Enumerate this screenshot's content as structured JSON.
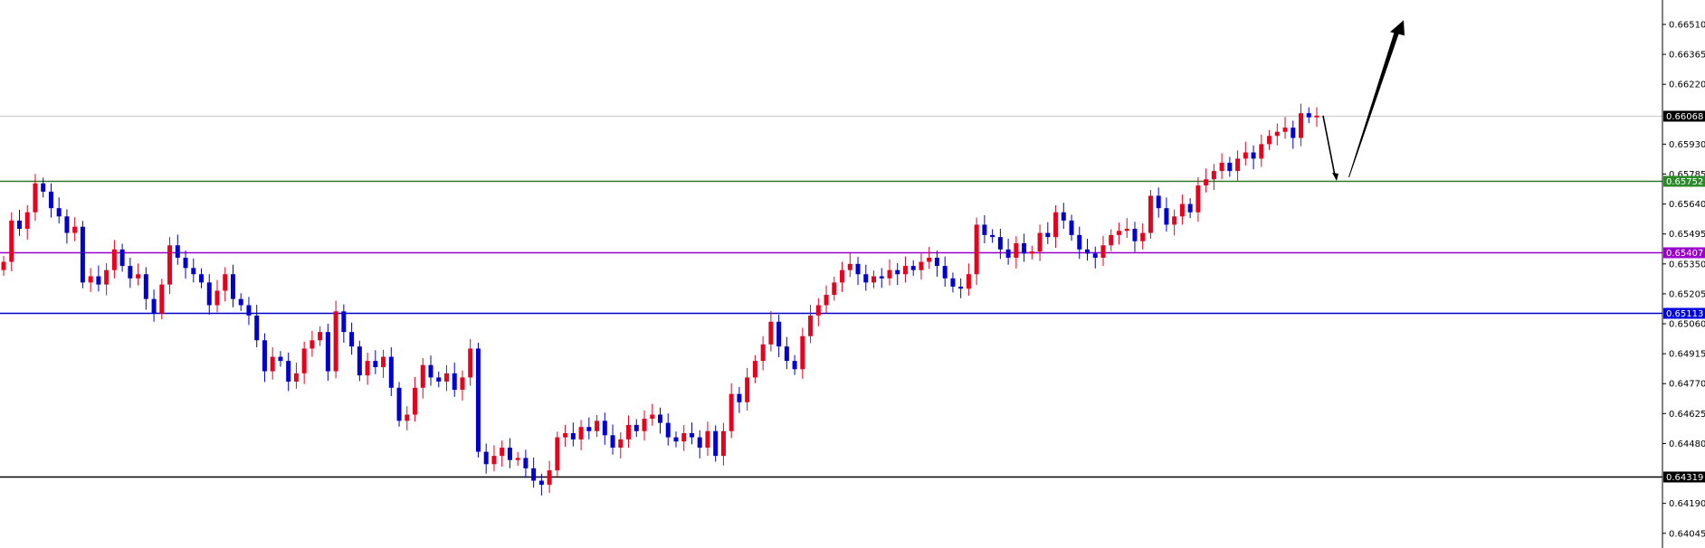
{
  "chart_data": {
    "type": "candlestick",
    "title": "",
    "xlabel": "",
    "ylabel": "",
    "ylim": [
      0.64,
      0.6665
    ],
    "grid": false,
    "colors": {
      "bullish": "#e8001c",
      "bearish": "#0000d0",
      "axis": "#000000"
    },
    "y_ticks": [
      "0.66510",
      "0.66365",
      "0.66220",
      "0.65930",
      "0.65785",
      "0.65640",
      "0.65495",
      "0.65350",
      "0.65205",
      "0.65060",
      "0.64915",
      "0.64770",
      "0.64625",
      "0.64480",
      "0.64190",
      "0.64045"
    ],
    "horizontal_lines": [
      {
        "price": 0.66068,
        "label": "0.66068",
        "color": "#c8c8c8",
        "tag_color": "#000000",
        "tag_text_color": "#ffffff"
      },
      {
        "price": 0.65752,
        "label": "0.65752",
        "color": "#2a7a2a",
        "tag_color": "#2a8a2a",
        "tag_text_color": "#ffffff"
      },
      {
        "price": 0.65407,
        "label": "0.65407",
        "color": "#9a00cc",
        "tag_color": "#9a00cc",
        "tag_text_color": "#ffffff"
      },
      {
        "price": 0.65113,
        "label": "0.65113",
        "color": "#0000c8",
        "tag_color": "#0000e0",
        "tag_text_color": "#ffffff"
      },
      {
        "price": 0.64319,
        "label": "0.64319",
        "color": "#000000",
        "tag_color": "#000000",
        "tag_text_color": "#ffffff"
      }
    ],
    "annotations": [
      {
        "type": "arrow",
        "direction": "down",
        "from_price": 0.66068,
        "to_price": 0.65752,
        "color": "#000000"
      },
      {
        "type": "arrow",
        "direction": "up",
        "from_price": 0.65752,
        "to_price": 0.6653,
        "color": "#000000"
      }
    ],
    "closes": [
      0.6536,
      0.6556,
      0.6552,
      0.656,
      0.6574,
      0.657,
      0.6562,
      0.6558,
      0.655,
      0.6553,
      0.6526,
      0.6529,
      0.6525,
      0.6532,
      0.6542,
      0.6534,
      0.6528,
      0.653,
      0.6518,
      0.6511,
      0.6525,
      0.6544,
      0.6538,
      0.6533,
      0.653,
      0.6526,
      0.6515,
      0.6522,
      0.653,
      0.6518,
      0.6515,
      0.651,
      0.6498,
      0.6483,
      0.649,
      0.6488,
      0.6478,
      0.6482,
      0.6494,
      0.6498,
      0.6502,
      0.6483,
      0.6512,
      0.6502,
      0.6495,
      0.6481,
      0.6488,
      0.6485,
      0.649,
      0.6475,
      0.6459,
      0.6462,
      0.6475,
      0.6486,
      0.648,
      0.6478,
      0.6482,
      0.6474,
      0.648,
      0.6494,
      0.6444,
      0.6438,
      0.6442,
      0.6446,
      0.644,
      0.6441,
      0.6436,
      0.643,
      0.6428,
      0.6435,
      0.6451,
      0.6453,
      0.645,
      0.6456,
      0.6454,
      0.6459,
      0.6452,
      0.6446,
      0.645,
      0.6457,
      0.6454,
      0.646,
      0.6462,
      0.6458,
      0.6451,
      0.6449,
      0.6453,
      0.6451,
      0.6446,
      0.6454,
      0.6442,
      0.6454,
      0.6472,
      0.6468,
      0.648,
      0.6488,
      0.6496,
      0.6507,
      0.6495,
      0.6488,
      0.6484,
      0.65,
      0.651,
      0.6515,
      0.652,
      0.6526,
      0.6532,
      0.6535,
      0.653,
      0.6526,
      0.6529,
      0.6528,
      0.6532,
      0.653,
      0.6534,
      0.6532,
      0.6536,
      0.6538,
      0.6534,
      0.6528,
      0.6524,
      0.6523,
      0.653,
      0.6554,
      0.6549,
      0.6548,
      0.6542,
      0.6538,
      0.6545,
      0.654,
      0.6541,
      0.655,
      0.6548,
      0.656,
      0.6556,
      0.6549,
      0.6542,
      0.654,
      0.6538,
      0.6544,
      0.6549,
      0.6551,
      0.6552,
      0.6546,
      0.655,
      0.6568,
      0.6562,
      0.6554,
      0.6558,
      0.6564,
      0.656,
      0.6573,
      0.6576,
      0.658,
      0.6584,
      0.658,
      0.6586,
      0.6589,
      0.6586,
      0.6593,
      0.6597,
      0.6599,
      0.6601,
      0.6596,
      0.6608,
      0.6606,
      0.66068
    ]
  }
}
